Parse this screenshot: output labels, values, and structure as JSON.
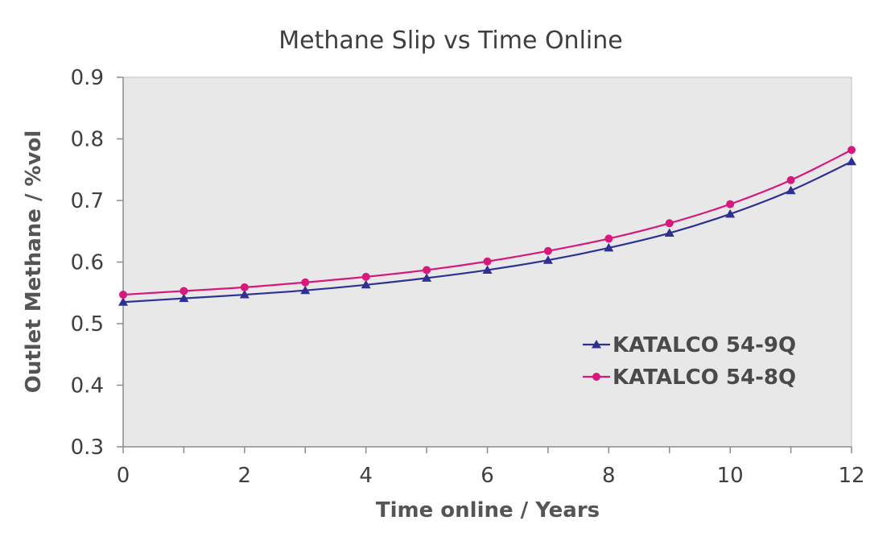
{
  "chart_data": {
    "type": "line",
    "title": "Methane Slip vs Time Online",
    "xlabel": "Time online / Years",
    "ylabel": "Outlet Methane / %vol",
    "xlim": [
      0,
      12
    ],
    "ylim": [
      0.3,
      0.9
    ],
    "x_ticks": [
      "0",
      "2",
      "4",
      "6",
      "8",
      "10",
      "12"
    ],
    "y_ticks": [
      "0.3",
      "0.4",
      "0.5",
      "0.6",
      "0.7",
      "0.8",
      "0.9"
    ],
    "x": [
      0,
      1,
      2,
      3,
      4,
      5,
      6,
      7,
      8,
      9,
      10,
      11,
      12
    ],
    "grid": false,
    "plot_background": "#e8e8e8",
    "legend_position": "bottom-right",
    "series": [
      {
        "name": "KATALCO 54-9Q",
        "color": "#2e3192",
        "marker": "triangle",
        "values": [
          0.535,
          0.541,
          0.547,
          0.554,
          0.563,
          0.574,
          0.587,
          0.603,
          0.623,
          0.647,
          0.678,
          0.716,
          0.763
        ]
      },
      {
        "name": "KATALCO 54-8Q",
        "color": "#d6197a",
        "marker": "circle",
        "values": [
          0.547,
          0.553,
          0.559,
          0.567,
          0.576,
          0.587,
          0.601,
          0.618,
          0.638,
          0.663,
          0.694,
          0.733,
          0.782
        ]
      }
    ]
  }
}
